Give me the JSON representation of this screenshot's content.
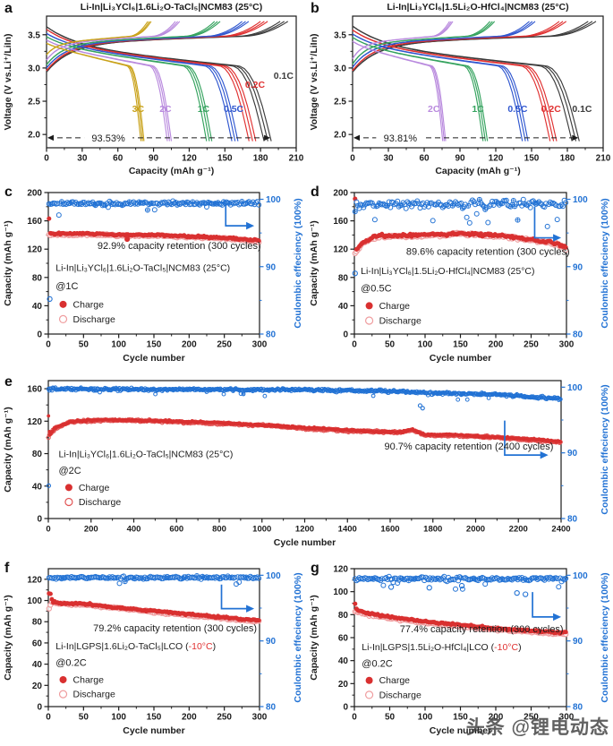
{
  "page": {
    "watermark": "头条 @锂电动态",
    "background": "#ffffff"
  },
  "colors": {
    "axis": "#1c1c1c",
    "text": "#1c1c1c",
    "ce_blue": "#2272d4",
    "charge_red": "#d93030",
    "discharge_pink": "#ef9c9e",
    "discharge_red": "#e25555",
    "accent_red": "#e03131",
    "rate_01C": "#3c3c3c",
    "rate_02C": "#e03131",
    "rate_05C": "#3057cf",
    "rate_1C": "#36a35f",
    "rate_2C": "#b98ade",
    "rate_3C": "#c9a21a"
  },
  "common": {
    "xlabel_rate": "Capacity (mAh g⁻¹)",
    "xlabel_cycle": "Cycle number",
    "ylabel_cap": "Capacity (mAh g⁻¹)",
    "ylabel_volt": "Voltage (V vs.Li⁺/LiIn)",
    "y2label": "Coulombic effeciency (100%)",
    "y2lim": [
      80,
      101
    ],
    "y2ticks": [
      80,
      90,
      100
    ],
    "legend_charge": "Charge",
    "legend_discharge": "Discharge"
  },
  "chart_data": {
    "type": "multi-panel",
    "panels": [
      {
        "id": "a",
        "type": "rate",
        "title": "Li-In|Li₃YCl₆|1.6Li₂O-TaCl₅|NCM83 (25°C)",
        "xlim": [
          0,
          210
        ],
        "xticks": [
          0,
          30,
          60,
          90,
          120,
          150,
          180,
          210
        ],
        "ylim": [
          1.8,
          3.78
        ],
        "yticks": [
          "2.0",
          "2.5",
          "3.0",
          "3.5"
        ],
        "retention_pct": "93.53%",
        "pct_x": 52,
        "arrow_v": 1.95,
        "rates": [
          {
            "label": "0.1C",
            "color": "#3c3c3c",
            "qc": 203,
            "qd": 189,
            "v0c": 2.94,
            "v0d": 3.62,
            "lx": 191,
            "lv": 2.84
          },
          {
            "label": "0.2C",
            "color": "#e03131",
            "qc": 186,
            "qd": 176,
            "v0c": 2.96,
            "v0d": 3.58,
            "lx": 167,
            "lv": 2.7
          },
          {
            "label": "0.5C",
            "color": "#3057cf",
            "qc": 170,
            "qd": 161,
            "v0c": 3.0,
            "v0d": 3.52,
            "lx": 149,
            "lv": 2.34
          },
          {
            "label": "1C",
            "color": "#36a35f",
            "qc": 146,
            "qd": 139,
            "v0c": 3.05,
            "v0d": 3.47,
            "lx": 127,
            "lv": 2.34
          },
          {
            "label": "2C",
            "color": "#b98ade",
            "qc": 112,
            "qd": 105,
            "v0c": 3.12,
            "v0d": 3.42,
            "lx": 95,
            "lv": 2.34
          },
          {
            "label": "3C",
            "color": "#c9a21a",
            "qc": 88,
            "qd": 82,
            "v0c": 3.2,
            "v0d": 3.37,
            "lx": 72,
            "lv": 2.34
          }
        ]
      },
      {
        "id": "b",
        "type": "rate",
        "title": "Li-In|Li₃YCl₆|1.5Li₂O-HfCl₄|NCM83 (25°C)",
        "xlim": [
          0,
          210
        ],
        "xticks": [
          0,
          30,
          60,
          90,
          120,
          150,
          180,
          210
        ],
        "ylim": [
          1.8,
          3.78
        ],
        "yticks": [
          "2.0",
          "2.5",
          "3.0",
          "3.5"
        ],
        "retention_pct": "93.81%",
        "pct_x": 40,
        "arrow_v": 1.95,
        "rates": [
          {
            "label": "0.1C",
            "color": "#3c3c3c",
            "qc": 204,
            "qd": 190,
            "v0c": 2.94,
            "v0d": 3.63,
            "lx": 184,
            "lv": 2.34
          },
          {
            "label": "0.2C",
            "color": "#e03131",
            "qc": 179,
            "qd": 171,
            "v0c": 2.96,
            "v0d": 3.57,
            "lx": 158,
            "lv": 2.34
          },
          {
            "label": "0.5C",
            "color": "#3057cf",
            "qc": 153,
            "qd": 147,
            "v0c": 3.01,
            "v0d": 3.51,
            "lx": 130,
            "lv": 2.34
          },
          {
            "label": "1C",
            "color": "#36a35f",
            "qc": 119,
            "qd": 113,
            "v0c": 3.06,
            "v0d": 3.46,
            "lx": 100,
            "lv": 2.34
          },
          {
            "label": "2C",
            "color": "#b98ade",
            "qc": 84,
            "qd": 78,
            "v0c": 3.14,
            "v0d": 3.4,
            "lx": 63,
            "lv": 2.34
          }
        ]
      },
      {
        "id": "c",
        "type": "cycling",
        "seed": 11,
        "xlim": [
          0,
          300
        ],
        "xticks": [
          0,
          50,
          100,
          150,
          200,
          250,
          300
        ],
        "ylim": [
          0,
          200
        ],
        "yticks": [
          0,
          40,
          80,
          120,
          160,
          200
        ],
        "n": 300,
        "step": 2,
        "cap_noise": 1.4,
        "ce_noise": 0.3,
        "ce_spike": [
          0.02,
          1.3
        ],
        "charge": [
          [
            1,
            163
          ],
          [
            2,
            142
          ],
          [
            60,
            142
          ],
          [
            110,
            140
          ],
          [
            150,
            140
          ],
          [
            200,
            138
          ],
          [
            250,
            136
          ],
          [
            300,
            132
          ]
        ],
        "discharge": [
          [
            1,
            140
          ],
          [
            60,
            141
          ],
          [
            110,
            139
          ],
          [
            150,
            139
          ],
          [
            200,
            137
          ],
          [
            250,
            135
          ],
          [
            300,
            131
          ]
        ],
        "ce": [
          [
            1,
            99.4
          ],
          [
            300,
            99.4
          ]
        ],
        "charge_extra": [
          [
            112,
            134
          ]
        ],
        "ce_extra": [
          [
            2,
            85.2
          ]
        ],
        "retention": "92.9% capacity retention (300 cycles)",
        "ret_pos": [
          0.62,
          0.4
        ],
        "cell": [
          {
            "t": "Li-In|Li₃YCl₆|1.6Li₂O-TaCl₅|NCM83 (25°C)"
          }
        ],
        "cell_pos": [
          0.035,
          0.555
        ],
        "rate": "@1C",
        "rate_pos": [
          0.035,
          0.685
        ],
        "legend_pos": [
          0.07,
          0.79
        ],
        "arrow": [
          0.84,
          0.085,
          0.235
        ]
      },
      {
        "id": "d",
        "type": "cycling",
        "seed": 22,
        "xlim": [
          0,
          300
        ],
        "xticks": [
          0,
          50,
          100,
          150,
          200,
          250,
          300
        ],
        "ylim": [
          0,
          200
        ],
        "yticks": [
          0,
          40,
          80,
          120,
          160,
          200
        ],
        "n": 300,
        "step": 2,
        "cap_noise": 2.4,
        "ce_noise": 0.6,
        "ce_spike": [
          0.06,
          2.4
        ],
        "charge": [
          [
            1,
            192
          ],
          [
            2,
            120
          ],
          [
            10,
            129
          ],
          [
            30,
            139
          ],
          [
            60,
            139
          ],
          [
            100,
            140
          ],
          [
            150,
            142
          ],
          [
            200,
            140
          ],
          [
            250,
            134
          ],
          [
            285,
            128
          ],
          [
            300,
            122
          ]
        ],
        "discharge": [
          [
            1,
            114
          ],
          [
            10,
            127
          ],
          [
            30,
            137
          ],
          [
            60,
            138
          ],
          [
            100,
            139
          ],
          [
            150,
            141
          ],
          [
            200,
            139
          ],
          [
            250,
            133
          ],
          [
            285,
            127
          ],
          [
            300,
            121
          ]
        ],
        "ce": [
          [
            1,
            99.2
          ],
          [
            300,
            99.3
          ]
        ],
        "ce_extra": [
          [
            1,
            89.0
          ]
        ],
        "retention": "89.6% capacity retention (300 cycles)",
        "ret_pos": [
          0.63,
          0.44
        ],
        "cell": [
          {
            "t": "Li-In|Li₃YCl₆|1.5Li₂O-HfCl₄|NCM83 (25°C)"
          }
        ],
        "cell_pos": [
          0.03,
          0.575
        ],
        "rate": "@0.5C",
        "rate_pos": [
          0.03,
          0.7
        ],
        "legend_pos": [
          0.07,
          0.8
        ],
        "arrow": [
          0.85,
          0.1,
          0.32
        ]
      },
      {
        "id": "e",
        "type": "cycling",
        "wide": true,
        "seed": 33,
        "charge_top": true,
        "xlim": [
          0,
          2400
        ],
        "xticks": [
          0,
          200,
          400,
          600,
          800,
          1000,
          1200,
          1400,
          1600,
          1800,
          2000,
          2200,
          2400
        ],
        "ylim": [
          0,
          170
        ],
        "yticks": [
          0,
          40,
          80,
          120,
          160
        ],
        "n": 2400,
        "step": 4,
        "cap_noise": 1.7,
        "ce_noise": 0.22,
        "ce_spike": [
          0.02,
          0.7
        ],
        "charge": [
          [
            1,
            126
          ],
          [
            6,
            102
          ],
          [
            30,
            111
          ],
          [
            100,
            119
          ],
          [
            250,
            122
          ],
          [
            400,
            121
          ],
          [
            600,
            120
          ],
          [
            800,
            118
          ],
          [
            1000,
            115
          ],
          [
            1200,
            112
          ],
          [
            1400,
            109
          ],
          [
            1550,
            107
          ],
          [
            1650,
            106
          ],
          [
            1700,
            110
          ],
          [
            1760,
            103
          ],
          [
            1900,
            103
          ],
          [
            2100,
            100
          ],
          [
            2250,
            98
          ],
          [
            2400,
            95
          ]
        ],
        "discharge": [
          [
            1,
            100
          ],
          [
            6,
            103
          ],
          [
            30,
            111
          ],
          [
            100,
            119
          ],
          [
            250,
            121
          ],
          [
            400,
            121
          ],
          [
            600,
            119
          ],
          [
            800,
            117
          ],
          [
            1000,
            115
          ],
          [
            1200,
            111
          ],
          [
            1400,
            108
          ],
          [
            1550,
            107
          ],
          [
            1650,
            106
          ],
          [
            1700,
            109
          ],
          [
            1760,
            103
          ],
          [
            1900,
            102
          ],
          [
            2100,
            100
          ],
          [
            2250,
            97
          ],
          [
            2400,
            94
          ]
        ],
        "ce": [
          [
            1,
            99.7
          ],
          [
            1200,
            99.6
          ],
          [
            1600,
            99.4
          ],
          [
            1800,
            99.1
          ],
          [
            2100,
            98.9
          ],
          [
            2400,
            98.2
          ]
        ],
        "ce_extra": [
          [
            2,
            85.0
          ],
          [
            1740,
            97.2
          ],
          [
            1752,
            96.8
          ]
        ],
        "retention": "90.7% capacity retention (2400 cycles)",
        "ret_pos": [
          0.985,
          0.5
        ],
        "ret_anchor": "end",
        "cell": [
          {
            "t": "Li-In|Li₃YCl₆|1.6Li₂O-TaCl₅|NCM83 (25°C)"
          }
        ],
        "cell_pos": [
          0.02,
          0.555
        ],
        "rate": "@2C",
        "rate_pos": [
          0.02,
          0.675
        ],
        "legend_pos": [
          0.04,
          0.775
        ],
        "arrow": [
          0.89,
          0.29,
          0.54
        ]
      },
      {
        "id": "f",
        "type": "cycling",
        "seed": 44,
        "xlim": [
          0,
          300
        ],
        "xticks": [
          0,
          50,
          100,
          150,
          200,
          250,
          300
        ],
        "ylim": [
          0,
          130
        ],
        "yticks": [
          0,
          20,
          40,
          60,
          80,
          100,
          120
        ],
        "n": 300,
        "step": 2,
        "cap_noise": 0.9,
        "ce_noise": 0.22,
        "ce_spike": [
          0.03,
          0.8
        ],
        "charge": [
          [
            1,
            107
          ],
          [
            3,
            106
          ],
          [
            6,
            99
          ],
          [
            20,
            97
          ],
          [
            50,
            97
          ],
          [
            100,
            93
          ],
          [
            150,
            90
          ],
          [
            200,
            87
          ],
          [
            250,
            84
          ],
          [
            300,
            81
          ]
        ],
        "discharge": [
          [
            1,
            92
          ],
          [
            4,
            98
          ],
          [
            20,
            97
          ],
          [
            50,
            96
          ],
          [
            100,
            93
          ],
          [
            150,
            89
          ],
          [
            200,
            86
          ],
          [
            250,
            83
          ],
          [
            300,
            80
          ]
        ],
        "ce": [
          [
            1,
            99.6
          ],
          [
            300,
            99.7
          ]
        ],
        "retention": "79.2% capacity retention (300 cycles)",
        "ret_pos": [
          0.6,
          0.455
        ],
        "cell": [
          {
            "t": "Li-In|LGPS|1.6Li₂O-TaCl₅|LCO ("
          },
          {
            "t": "-10°C",
            "c": "#e03131"
          },
          {
            "t": ")"
          }
        ],
        "cell_pos": [
          0.035,
          0.585
        ],
        "rate": "@0.2C",
        "rate_pos": [
          0.035,
          0.705
        ],
        "legend_pos": [
          0.07,
          0.805
        ],
        "arrow": [
          0.82,
          0.115,
          0.29
        ]
      },
      {
        "id": "g",
        "type": "cycling",
        "seed": 55,
        "xlim": [
          0,
          300
        ],
        "xticks": [
          0,
          50,
          100,
          150,
          200,
          250,
          300
        ],
        "ylim": [
          0,
          120
        ],
        "yticks": [
          0,
          20,
          40,
          60,
          80,
          100,
          120
        ],
        "n": 300,
        "step": 2,
        "cap_noise": 0.9,
        "ce_noise": 0.3,
        "ce_spike": [
          0.04,
          1.0
        ],
        "charge": [
          [
            1,
            89
          ],
          [
            4,
            84
          ],
          [
            20,
            81
          ],
          [
            50,
            78
          ],
          [
            100,
            74
          ],
          [
            150,
            71
          ],
          [
            200,
            68
          ],
          [
            250,
            66
          ],
          [
            300,
            64
          ]
        ],
        "discharge": [
          [
            1,
            83
          ],
          [
            20,
            80
          ],
          [
            50,
            77
          ],
          [
            100,
            73
          ],
          [
            150,
            70
          ],
          [
            200,
            67
          ],
          [
            250,
            65
          ],
          [
            300,
            63
          ]
        ],
        "ce": [
          [
            1,
            99.5
          ],
          [
            300,
            99.4
          ]
        ],
        "ce_extra": [
          [
            52,
            98.2
          ],
          [
            106,
            98.1
          ],
          [
            152,
            98.4
          ],
          [
            230,
            97.3
          ],
          [
            242,
            97.1
          ]
        ],
        "retention": "77.4% capacity retention (300 cycles)",
        "ret_pos": [
          0.6,
          0.46
        ],
        "cell": [
          {
            "t": "Li-In|LGPS|1.5Li₂O-HfCl₄|LCO ("
          },
          {
            "t": "-10°C",
            "c": "#e03131"
          },
          {
            "t": ")"
          }
        ],
        "cell_pos": [
          0.035,
          0.59
        ],
        "rate": "@0.2C",
        "rate_pos": [
          0.035,
          0.71
        ],
        "legend_pos": [
          0.07,
          0.81
        ],
        "arrow": [
          0.84,
          0.17,
          0.35
        ]
      }
    ]
  }
}
